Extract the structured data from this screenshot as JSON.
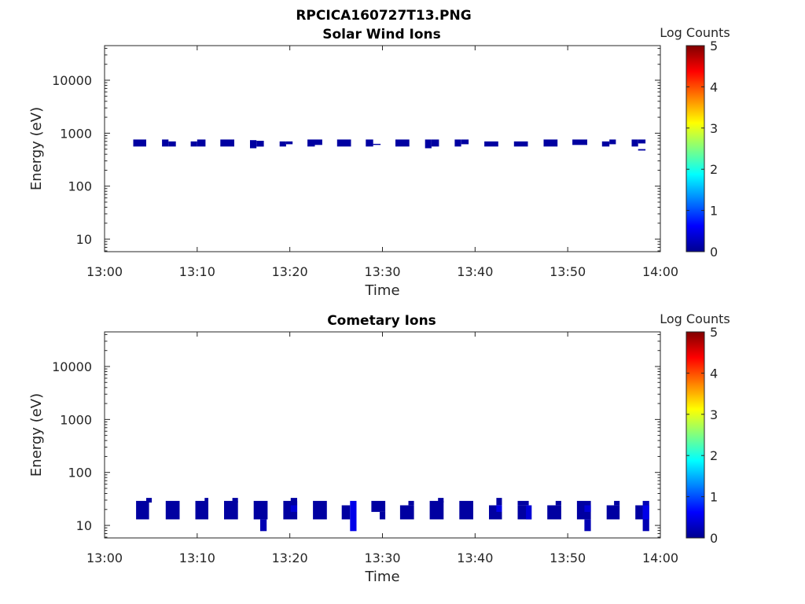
{
  "figure_title": "RPCICA160727T13.PNG",
  "colormap": [
    "#00008f",
    "#0000ff",
    "#0080ff",
    "#00ffff",
    "#80ff80",
    "#ffff00",
    "#ff8000",
    "#ff0000",
    "#800000"
  ],
  "chart_data": [
    {
      "type": "heatmap",
      "title": "Solar Wind Ions",
      "xlabel": "Time",
      "ylabel": "Energy (eV)",
      "y_scale": "log",
      "x_ticks": [
        "13:00",
        "13:10",
        "13:20",
        "13:30",
        "13:40",
        "13:50",
        "14:00"
      ],
      "y_ticks": [
        "10",
        "100",
        "1000",
        "10000"
      ],
      "colorbar_label": "Log Counts",
      "colorbar_ticks": [
        "0",
        "1",
        "2",
        "3",
        "4",
        "5"
      ],
      "clim": [
        0,
        5
      ],
      "cells": [
        {
          "t0": 3.1,
          "t1": 4.5,
          "e0": 560,
          "e1": 760,
          "log_counts": 0.1
        },
        {
          "t0": 6.2,
          "t1": 6.9,
          "e0": 560,
          "e1": 760,
          "log_counts": 0.1
        },
        {
          "t0": 6.9,
          "t1": 7.7,
          "e0": 560,
          "e1": 700,
          "log_counts": 0.1
        },
        {
          "t0": 9.3,
          "t1": 10.0,
          "e0": 560,
          "e1": 700,
          "log_counts": 0.1
        },
        {
          "t0": 10.0,
          "t1": 10.9,
          "e0": 560,
          "e1": 760,
          "log_counts": 0.1
        },
        {
          "t0": 12.5,
          "t1": 14.0,
          "e0": 560,
          "e1": 760,
          "log_counts": 0.1
        },
        {
          "t0": 15.7,
          "t1": 16.4,
          "e0": 520,
          "e1": 740,
          "log_counts": 0.1
        },
        {
          "t0": 16.4,
          "t1": 17.2,
          "e0": 560,
          "e1": 720,
          "log_counts": 0.1
        },
        {
          "t0": 18.9,
          "t1": 19.6,
          "e0": 560,
          "e1": 700,
          "log_counts": 0.1
        },
        {
          "t0": 19.6,
          "t1": 20.3,
          "e0": 620,
          "e1": 700,
          "log_counts": 0.1
        },
        {
          "t0": 21.9,
          "t1": 22.7,
          "e0": 560,
          "e1": 760,
          "log_counts": 0.1
        },
        {
          "t0": 22.7,
          "t1": 23.5,
          "e0": 600,
          "e1": 760,
          "log_counts": 0.1
        },
        {
          "t0": 25.1,
          "t1": 26.6,
          "e0": 560,
          "e1": 760,
          "log_counts": 0.1
        },
        {
          "t0": 28.2,
          "t1": 29.0,
          "e0": 560,
          "e1": 760,
          "log_counts": 0.1
        },
        {
          "t0": 29.0,
          "t1": 29.8,
          "e0": 600,
          "e1": 630,
          "log_counts": 0.1
        },
        {
          "t0": 31.4,
          "t1": 32.9,
          "e0": 560,
          "e1": 760,
          "log_counts": 0.1
        },
        {
          "t0": 34.6,
          "t1": 35.3,
          "e0": 520,
          "e1": 760,
          "log_counts": 0.1
        },
        {
          "t0": 35.3,
          "t1": 36.1,
          "e0": 560,
          "e1": 760,
          "log_counts": 0.1
        },
        {
          "t0": 37.8,
          "t1": 38.5,
          "e0": 560,
          "e1": 760,
          "log_counts": 0.1
        },
        {
          "t0": 38.5,
          "t1": 39.3,
          "e0": 620,
          "e1": 760,
          "log_counts": 0.1
        },
        {
          "t0": 41.0,
          "t1": 42.5,
          "e0": 560,
          "e1": 700,
          "log_counts": 0.1
        },
        {
          "t0": 44.2,
          "t1": 45.7,
          "e0": 560,
          "e1": 700,
          "log_counts": 0.1
        },
        {
          "t0": 47.4,
          "t1": 48.9,
          "e0": 560,
          "e1": 760,
          "log_counts": 0.1
        },
        {
          "t0": 50.5,
          "t1": 52.1,
          "e0": 600,
          "e1": 760,
          "log_counts": 0.1
        },
        {
          "t0": 53.7,
          "t1": 54.5,
          "e0": 560,
          "e1": 700,
          "log_counts": 0.1
        },
        {
          "t0": 54.5,
          "t1": 55.2,
          "e0": 620,
          "e1": 760,
          "log_counts": 0.1
        },
        {
          "t0": 56.9,
          "t1": 57.6,
          "e0": 560,
          "e1": 760,
          "log_counts": 0.1
        },
        {
          "t0": 57.6,
          "t1": 58.4,
          "e0": 640,
          "e1": 760,
          "log_counts": 0.1
        },
        {
          "t0": 57.6,
          "t1": 58.4,
          "e0": 470,
          "e1": 500,
          "log_counts": 0.1
        }
      ]
    },
    {
      "type": "heatmap",
      "title": "Cometary Ions",
      "xlabel": "Time",
      "ylabel": "Energy (eV)",
      "y_scale": "log",
      "x_ticks": [
        "13:00",
        "13:10",
        "13:20",
        "13:30",
        "13:40",
        "13:50",
        "14:00"
      ],
      "y_ticks": [
        "10",
        "100",
        "1000",
        "10000"
      ],
      "colorbar_label": "Log Counts",
      "colorbar_ticks": [
        "0",
        "1",
        "2",
        "3",
        "4",
        "5"
      ],
      "clim": [
        0,
        5
      ],
      "cells": [
        {
          "t0": 3.4,
          "t1": 4.8,
          "e0": 13,
          "e1": 29,
          "log_counts": 0.1
        },
        {
          "t0": 4.5,
          "t1": 5.1,
          "e0": 27,
          "e1": 33,
          "log_counts": 0.1
        },
        {
          "t0": 6.6,
          "t1": 8.1,
          "e0": 13,
          "e1": 29,
          "log_counts": 0.1
        },
        {
          "t0": 9.8,
          "t1": 11.2,
          "e0": 13,
          "e1": 29,
          "log_counts": 0.1
        },
        {
          "t0": 10.8,
          "t1": 11.2,
          "e0": 27,
          "e1": 33,
          "log_counts": 0.1
        },
        {
          "t0": 12.9,
          "t1": 14.4,
          "e0": 13,
          "e1": 29,
          "log_counts": 0.1
        },
        {
          "t0": 13.8,
          "t1": 14.4,
          "e0": 27,
          "e1": 33,
          "log_counts": 0.1
        },
        {
          "t0": 16.1,
          "t1": 17.6,
          "e0": 13,
          "e1": 29,
          "log_counts": 0.1
        },
        {
          "t0": 16.8,
          "t1": 17.5,
          "e0": 7.8,
          "e1": 13,
          "log_counts": 0.2
        },
        {
          "t0": 19.3,
          "t1": 20.8,
          "e0": 13,
          "e1": 29,
          "log_counts": 0.1
        },
        {
          "t0": 20.1,
          "t1": 20.8,
          "e0": 27,
          "e1": 33,
          "log_counts": 0.1
        },
        {
          "t0": 20.1,
          "t1": 20.8,
          "e0": 18,
          "e1": 24,
          "log_counts": 0.4
        },
        {
          "t0": 22.5,
          "t1": 24.0,
          "e0": 13,
          "e1": 29,
          "log_counts": 0.1
        },
        {
          "t0": 25.6,
          "t1": 26.5,
          "e0": 13,
          "e1": 24,
          "log_counts": 0.1
        },
        {
          "t0": 26.5,
          "t1": 27.2,
          "e0": 7.8,
          "e1": 29,
          "log_counts": 0.5
        },
        {
          "t0": 28.8,
          "t1": 30.3,
          "e0": 18,
          "e1": 29,
          "log_counts": 0.1
        },
        {
          "t0": 29.7,
          "t1": 30.3,
          "e0": 13,
          "e1": 18,
          "log_counts": 0.1
        },
        {
          "t0": 31.9,
          "t1": 33.4,
          "e0": 13,
          "e1": 24,
          "log_counts": 0.1
        },
        {
          "t0": 32.8,
          "t1": 33.4,
          "e0": 24,
          "e1": 29,
          "log_counts": 0.1
        },
        {
          "t0": 35.1,
          "t1": 36.6,
          "e0": 13,
          "e1": 29,
          "log_counts": 0.1
        },
        {
          "t0": 36.0,
          "t1": 36.6,
          "e0": 27,
          "e1": 33,
          "log_counts": 0.1
        },
        {
          "t0": 38.3,
          "t1": 39.8,
          "e0": 13,
          "e1": 29,
          "log_counts": 0.1
        },
        {
          "t0": 41.5,
          "t1": 42.9,
          "e0": 13,
          "e1": 24,
          "log_counts": 0.1
        },
        {
          "t0": 42.3,
          "t1": 42.9,
          "e0": 24,
          "e1": 33,
          "log_counts": 0.1
        },
        {
          "t0": 42.3,
          "t1": 42.9,
          "e0": 18,
          "e1": 24,
          "log_counts": 0.5
        },
        {
          "t0": 44.6,
          "t1": 46.1,
          "e0": 13,
          "e1": 24,
          "log_counts": 0.1
        },
        {
          "t0": 44.6,
          "t1": 45.8,
          "e0": 24,
          "e1": 29,
          "log_counts": 0.1
        },
        {
          "t0": 45.5,
          "t1": 46.1,
          "e0": 13,
          "e1": 24,
          "log_counts": 0.4
        },
        {
          "t0": 47.8,
          "t1": 49.3,
          "e0": 13,
          "e1": 24,
          "log_counts": 0.1
        },
        {
          "t0": 48.7,
          "t1": 49.3,
          "e0": 24,
          "e1": 29,
          "log_counts": 0.1
        },
        {
          "t0": 51.0,
          "t1": 52.5,
          "e0": 13,
          "e1": 29,
          "log_counts": 0.1
        },
        {
          "t0": 51.8,
          "t1": 52.5,
          "e0": 7.8,
          "e1": 13,
          "log_counts": 0.2
        },
        {
          "t0": 51.8,
          "t1": 52.5,
          "e0": 18,
          "e1": 24,
          "log_counts": 0.4
        },
        {
          "t0": 54.2,
          "t1": 55.6,
          "e0": 13,
          "e1": 24,
          "log_counts": 0.1
        },
        {
          "t0": 55.0,
          "t1": 55.6,
          "e0": 24,
          "e1": 29,
          "log_counts": 0.1
        },
        {
          "t0": 57.3,
          "t1": 58.1,
          "e0": 13,
          "e1": 24,
          "log_counts": 0.1
        },
        {
          "t0": 58.1,
          "t1": 58.8,
          "e0": 7.8,
          "e1": 29,
          "log_counts": 0.2
        },
        {
          "t0": 58.1,
          "t1": 58.8,
          "e0": 13,
          "e1": 24,
          "log_counts": 0.5
        }
      ]
    }
  ]
}
